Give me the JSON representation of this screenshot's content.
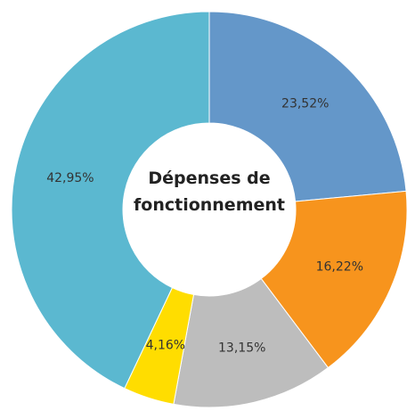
{
  "chart_data": {
    "type": "donut",
    "title": "Dépenses de fonctionnement",
    "categories": [
      null,
      null,
      null,
      null,
      null
    ],
    "values": [
      23.52,
      16.22,
      13.15,
      4.16,
      42.95
    ],
    "value_labels": [
      "23,52%",
      "16,22%",
      "13,15%",
      "4,16%",
      "42,95%"
    ],
    "colors": [
      "#6497c9",
      "#f7941d",
      "#bdbdbd",
      "#ffdd00",
      "#5bb8d0"
    ]
  }
}
